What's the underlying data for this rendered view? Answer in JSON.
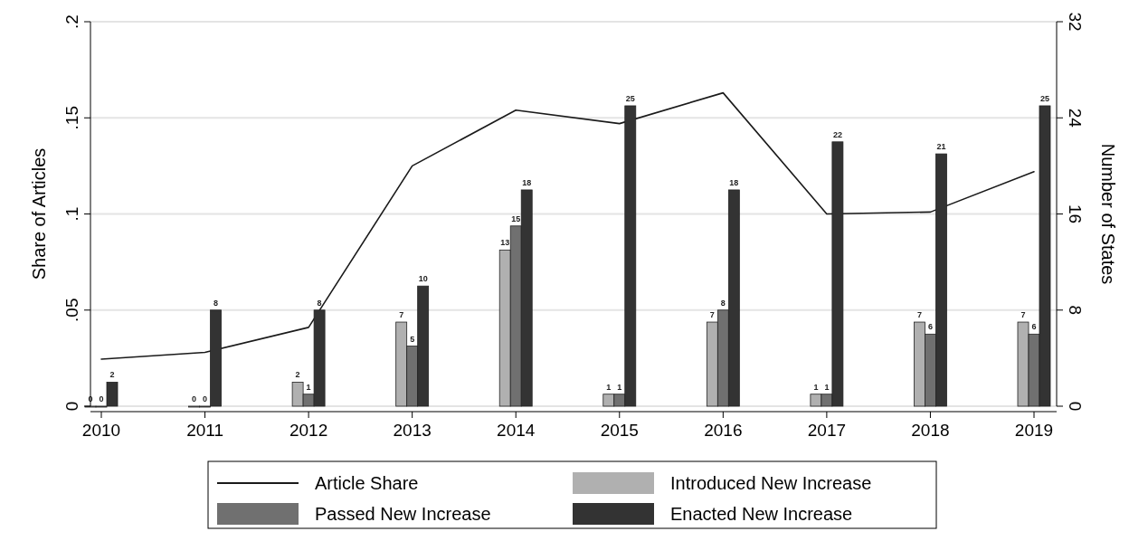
{
  "chart_data": {
    "type": "bar",
    "ylabel": "Share of Articles",
    "y2label": "Number of States",
    "categories": [
      "2010",
      "2011",
      "2012",
      "2013",
      "2014",
      "2015",
      "2016",
      "2017",
      "2018",
      "2019"
    ],
    "series": [
      {
        "name": "Article Share",
        "type": "line",
        "axis": "y",
        "color": "#1a1a1a",
        "values": [
          0.0245,
          0.028,
          0.041,
          0.125,
          0.154,
          0.147,
          0.163,
          0.1,
          0.101,
          0.122
        ]
      },
      {
        "name": "Introduced New Increase",
        "axis": "y2",
        "color": "#b0b0b0",
        "values": [
          0,
          0,
          2,
          7,
          13,
          1,
          7,
          1,
          7,
          7
        ],
        "value_labels": [
          "0",
          "0",
          "2",
          "7",
          "13",
          "1",
          "7",
          "1",
          "7",
          "7"
        ]
      },
      {
        "name": "Passed New Increase",
        "axis": "y2",
        "color": "#707070",
        "values": [
          0,
          0,
          1,
          5,
          15,
          1,
          8,
          1,
          6,
          6
        ],
        "value_labels": [
          "0",
          "0",
          "1",
          "5",
          "15",
          "1",
          "8",
          "1",
          "6",
          "6"
        ]
      },
      {
        "name": "Enacted New Increase",
        "axis": "y2",
        "color": "#333333",
        "values": [
          2,
          8,
          8,
          10,
          18,
          25,
          18,
          22,
          21,
          25
        ],
        "value_labels": [
          "2",
          "8",
          "8",
          "10",
          "18",
          "25",
          "18",
          "22",
          "21",
          "25"
        ]
      }
    ],
    "ylim": [
      0,
      0.2
    ],
    "yticks": [
      {
        "value": 0,
        "label": "0"
      },
      {
        "value": 0.05,
        "label": ".05"
      },
      {
        "value": 0.1,
        "label": ".1"
      },
      {
        "value": 0.15,
        "label": ".15"
      },
      {
        "value": 0.2,
        "label": ".2"
      }
    ],
    "y2lim": [
      0,
      32
    ],
    "y2ticks": [
      0,
      8,
      16,
      24,
      32
    ],
    "grid": "y",
    "legend": "bottom"
  }
}
